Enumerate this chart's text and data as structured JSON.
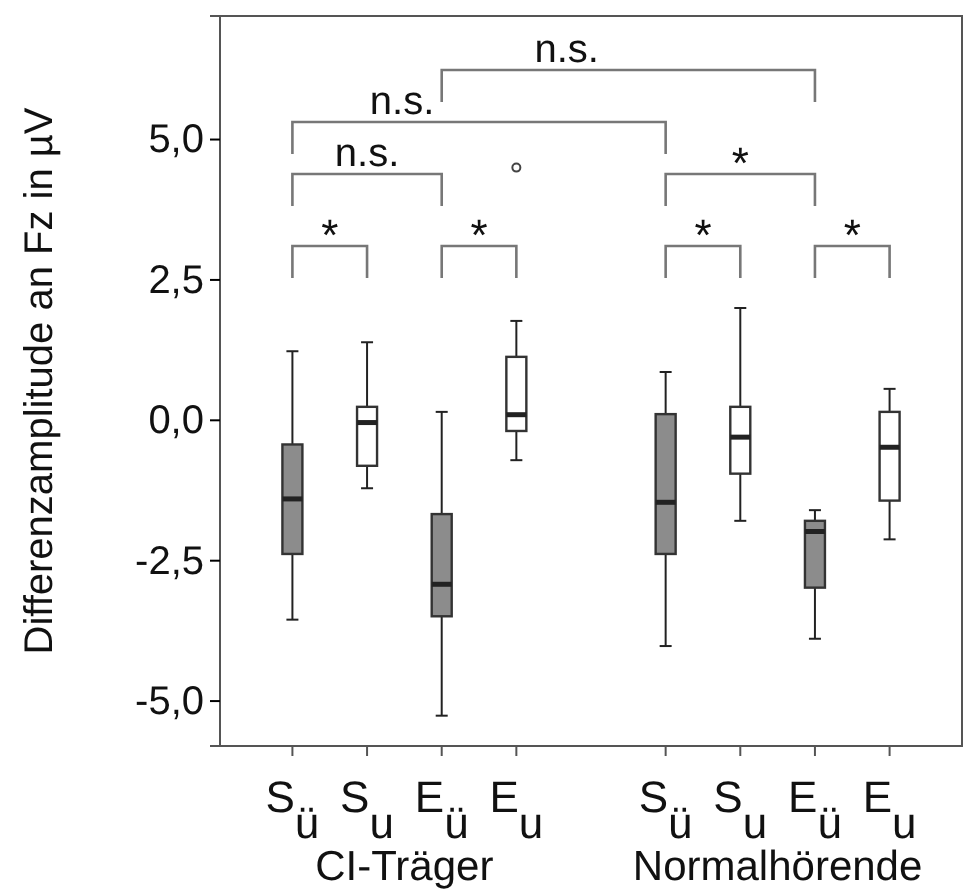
{
  "chart_data": {
    "type": "box",
    "ylabel": "Differenzamplitude an Fz in µV",
    "categories": [
      "S$_{ü}$",
      "S$_{u}$",
      "E$_{ü}$",
      "E$_{u}$",
      null,
      "S$_{ü}$",
      "S$_{u}$",
      "E$_{ü}$",
      "E$_{u}$"
    ],
    "boxes": [
      {
        "low": -3.55,
        "q1": -2.38,
        "median": -1.4,
        "q3": -0.43,
        "high": 1.23
      },
      {
        "low": -1.21,
        "q1": -0.81,
        "median": -0.04,
        "q3": 0.24,
        "high": 1.39
      },
      {
        "low": -5.26,
        "q1": -3.49,
        "median": -2.92,
        "q3": -1.67,
        "high": 0.15
      },
      {
        "low": -0.71,
        "q1": -0.19,
        "median": 0.1,
        "q3": 1.13,
        "high": 1.77,
        "outliers": [
          4.5
        ]
      },
      null,
      {
        "low": -4.02,
        "q1": -2.38,
        "median": -1.46,
        "q3": 0.11,
        "high": 0.86
      },
      {
        "low": -1.79,
        "q1": -0.95,
        "median": -0.3,
        "q3": 0.24,
        "high": 2.0
      },
      {
        "low": -3.89,
        "q1": -2.98,
        "median": -1.98,
        "q3": -1.79,
        "high": -1.6
      },
      {
        "low": -2.12,
        "q1": -1.43,
        "median": -0.48,
        "q3": 0.15,
        "high": 0.56
      }
    ],
    "colors": [
      "#8c8c8c",
      "#ffffff",
      "#8c8c8c",
      "#ffffff",
      null,
      "#8c8c8c",
      "#ffffff",
      "#8c8c8c",
      "#ffffff"
    ],
    "ylim": [
      -5.8,
      7.2
    ],
    "yticks": [
      {
        "value": -5,
        "label": "-5,0"
      },
      {
        "value": -2.5,
        "label": "-2,5"
      },
      {
        "value": 0,
        "label": "0,0"
      },
      {
        "value": 2.5,
        "label": "2,5"
      },
      {
        "value": 5,
        "label": "5,0"
      }
    ],
    "annotations": [
      "*",
      "*",
      "n.s.",
      "n.s.",
      "n.s.",
      "*",
      "*",
      "*",
      "CI-Träger",
      "Normalhörende"
    ]
  }
}
